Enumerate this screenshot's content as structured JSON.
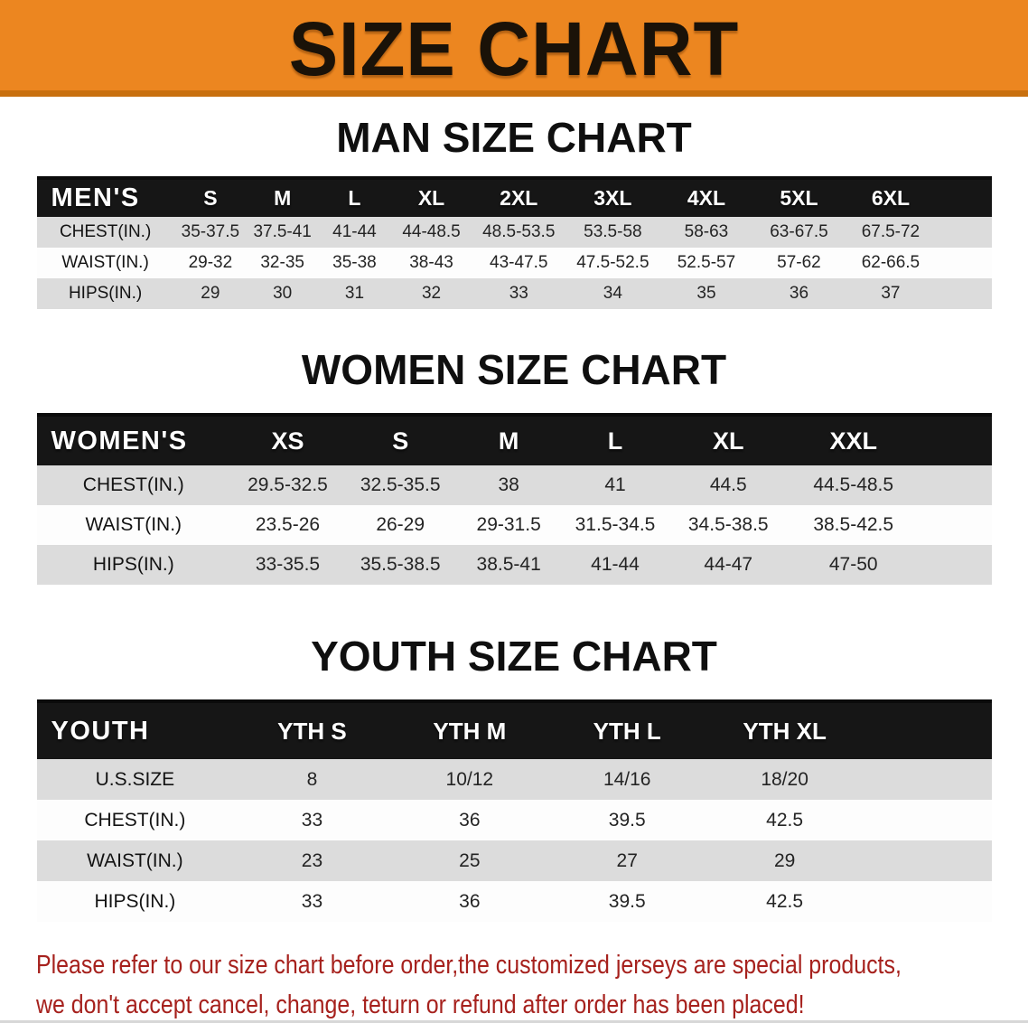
{
  "banner": {
    "title": "SIZE CHART"
  },
  "colors": {
    "banner_bg": "#EC8620",
    "banner_edge": "#C8700F",
    "table_header_bg": "#161616",
    "table_header_text": "#FFFFFF",
    "row_shade": "#DCDCDC",
    "footer_text": "#A6211D"
  },
  "sections": [
    {
      "id": "men",
      "heading": "MAN SIZE CHART",
      "table": {
        "header_label": "MEN'S",
        "sizes": [
          "S",
          "M",
          "L",
          "XL",
          "2XL",
          "3XL",
          "4XL",
          "5XL",
          "6XL"
        ],
        "rows": [
          {
            "label": "CHEST(IN.)",
            "values": [
              "35-37.5",
              "37.5-41",
              "41-44",
              "44-48.5",
              "48.5-53.5",
              "53.5-58",
              "58-63",
              "63-67.5",
              "67.5-72"
            ]
          },
          {
            "label": "WAIST(IN.)",
            "values": [
              "29-32",
              "32-35",
              "35-38",
              "38-43",
              "43-47.5",
              "47.5-52.5",
              "52.5-57",
              "57-62",
              "62-66.5"
            ]
          },
          {
            "label": "HIPS(IN.)",
            "values": [
              "29",
              "30",
              "31",
              "32",
              "33",
              "34",
              "35",
              "36",
              "37"
            ]
          }
        ]
      }
    },
    {
      "id": "women",
      "heading": "WOMEN SIZE CHART",
      "table": {
        "header_label": "WOMEN'S",
        "sizes": [
          "XS",
          "S",
          "M",
          "L",
          "XL",
          "XXL"
        ],
        "rows": [
          {
            "label": "CHEST(IN.)",
            "values": [
              "29.5-32.5",
              "32.5-35.5",
              "38",
              "41",
              "44.5",
              "44.5-48.5"
            ]
          },
          {
            "label": "WAIST(IN.)",
            "values": [
              "23.5-26",
              "26-29",
              "29-31.5",
              "31.5-34.5",
              "34.5-38.5",
              "38.5-42.5"
            ]
          },
          {
            "label": "HIPS(IN.)",
            "values": [
              "33-35.5",
              "35.5-38.5",
              "38.5-41",
              "41-44",
              "44-47",
              "47-50"
            ]
          }
        ]
      }
    },
    {
      "id": "youth",
      "heading": "YOUTH SIZE CHART",
      "table": {
        "header_label": "YOUTH",
        "sizes": [
          "YTH S",
          "YTH M",
          "YTH L",
          "YTH XL"
        ],
        "rows": [
          {
            "label": "U.S.SIZE",
            "values": [
              "8",
              "10/12",
              "14/16",
              "18/20"
            ]
          },
          {
            "label": "CHEST(IN.)",
            "values": [
              "33",
              "36",
              "39.5",
              "42.5"
            ]
          },
          {
            "label": "WAIST(IN.)",
            "values": [
              "23",
              "25",
              "27",
              "29"
            ]
          },
          {
            "label": "HIPS(IN.)",
            "values": [
              "33",
              "36",
              "39.5",
              "42.5"
            ]
          }
        ]
      }
    }
  ],
  "footer": {
    "line1": "Please refer to our size chart before order,the customized jerseys are special products,",
    "line2": "we don't accept cancel, change, teturn or refund after order has been placed!"
  }
}
